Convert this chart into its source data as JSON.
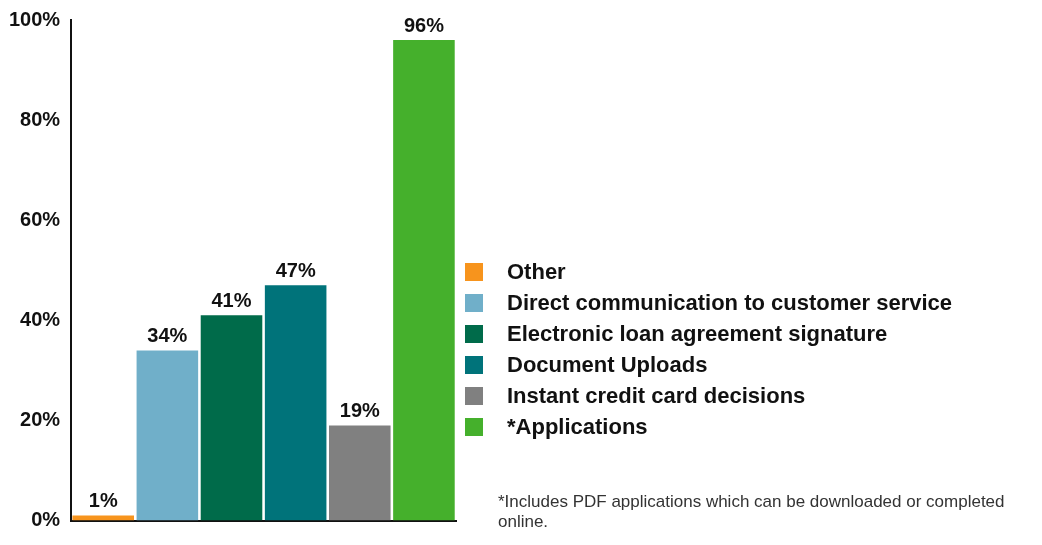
{
  "chart_data": {
    "type": "bar",
    "categories": [
      null,
      null,
      null,
      null,
      null,
      null
    ],
    "series": [
      {
        "name": "Other",
        "color": "#f7941d",
        "values": [
          1,
          null,
          null,
          null,
          null,
          null
        ],
        "value_labels": [
          "1%",
          null,
          null,
          null,
          null,
          null
        ]
      },
      {
        "name": "Direct communication to customer service",
        "color": "#70afc9",
        "values": [
          null,
          34,
          null,
          null,
          null,
          null
        ],
        "value_labels": [
          null,
          "34%",
          null,
          null,
          null,
          null
        ]
      },
      {
        "name": "Electronic loan agreement signature",
        "color": "#006b4a",
        "values": [
          null,
          null,
          41,
          null,
          null,
          null
        ],
        "value_labels": [
          null,
          null,
          "41%",
          null,
          null,
          null
        ]
      },
      {
        "name": "Document Uploads",
        "color": "#00737a",
        "values": [
          null,
          null,
          null,
          47,
          null,
          null
        ],
        "value_labels": [
          null,
          null,
          null,
          "47%",
          null,
          null
        ]
      },
      {
        "name": "Instant credit card decisions",
        "color": "#808080",
        "values": [
          null,
          null,
          null,
          null,
          19,
          null
        ],
        "value_labels": [
          null,
          null,
          null,
          null,
          "19%",
          null
        ]
      },
      {
        "name": "*Applications",
        "color": "#45b02c",
        "values": [
          null,
          null,
          null,
          null,
          null,
          96
        ],
        "value_labels": [
          null,
          null,
          null,
          null,
          null,
          "96%"
        ]
      }
    ],
    "ylim": [
      0,
      100
    ],
    "yticks": [
      {
        "value": 0,
        "label": "0%"
      },
      {
        "value": 20,
        "label": "20%"
      },
      {
        "value": 40,
        "label": "40%"
      },
      {
        "value": 60,
        "label": "60%"
      },
      {
        "value": 80,
        "label": "80%"
      },
      {
        "value": 100,
        "label": "100%"
      }
    ],
    "grid": false,
    "legend": "right",
    "annotations": [
      "*Includes PDF applications which can be downloaded or completed online."
    ]
  }
}
